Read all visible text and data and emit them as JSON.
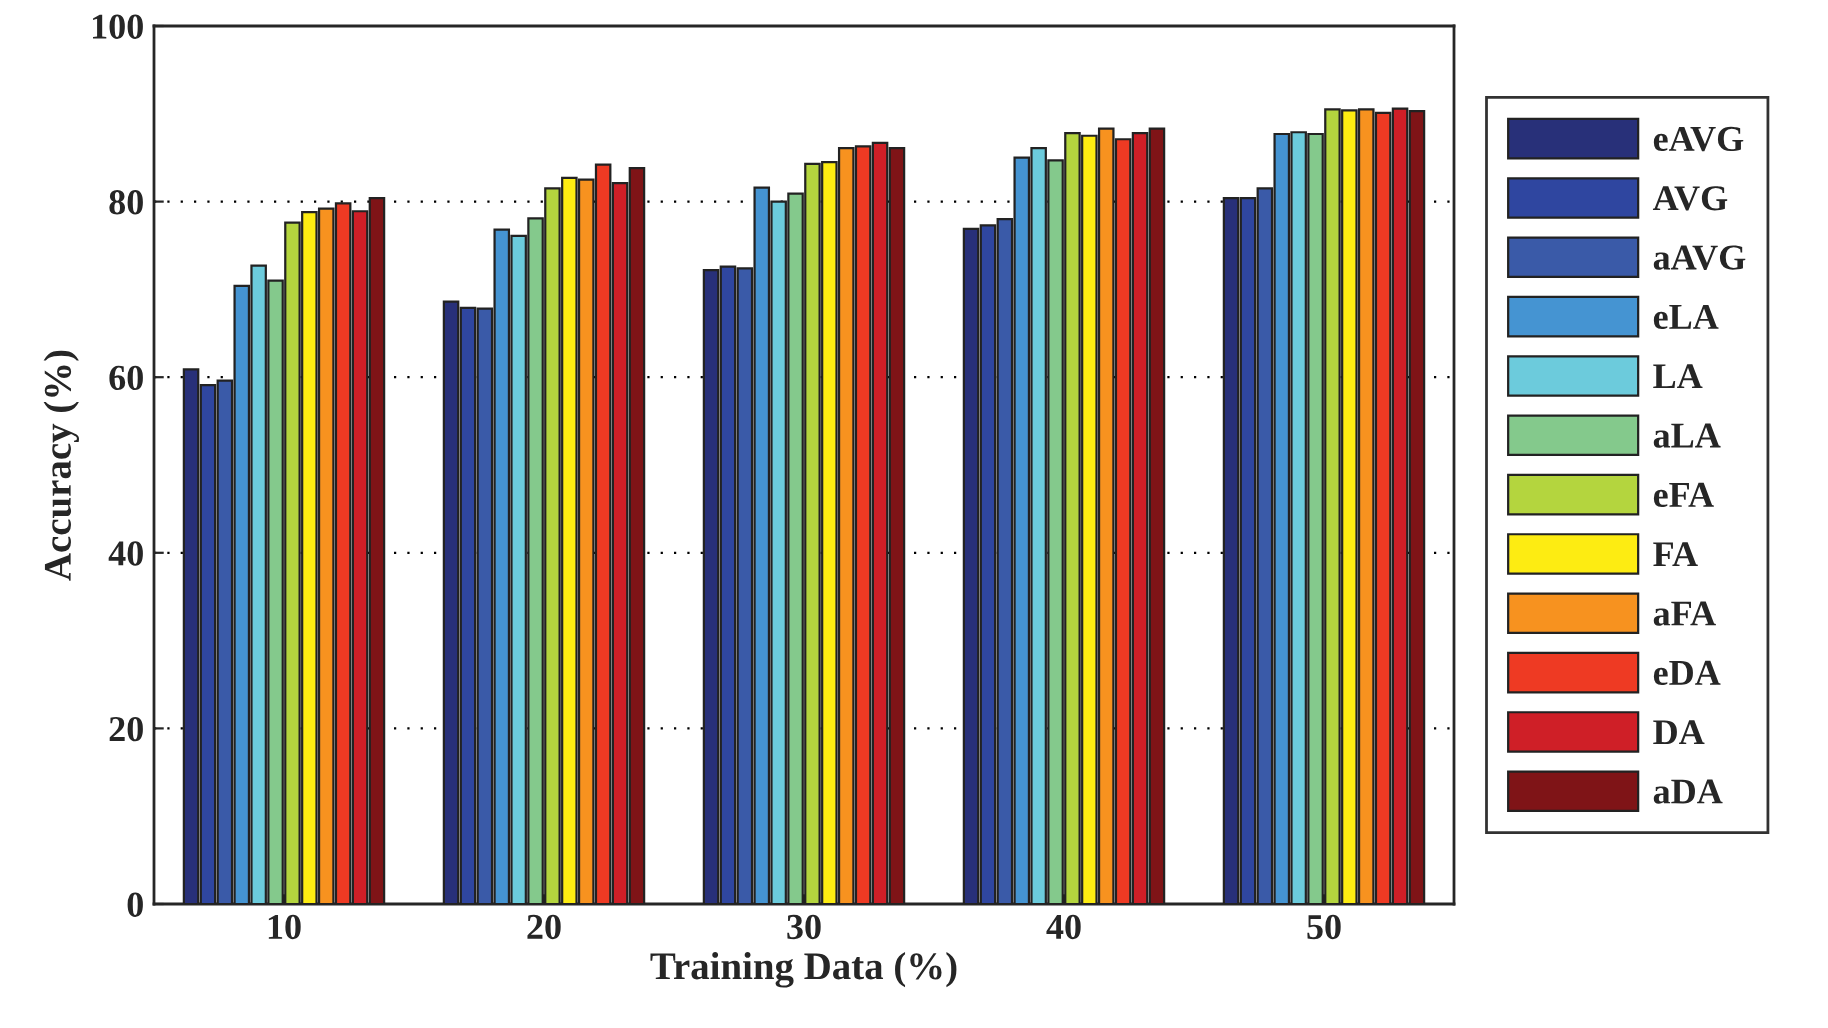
{
  "chart_data": {
    "type": "bar",
    "xlabel": "Training Data (%)",
    "ylabel": "Accuracy (%)",
    "categories": [
      "10",
      "20",
      "30",
      "40",
      "50"
    ],
    "series": [
      {
        "name": "eAVG",
        "color": "#283079",
        "values": [
          60.9,
          68.6,
          72.2,
          76.9,
          80.4
        ]
      },
      {
        "name": "AVG",
        "color": "#2f46a0",
        "values": [
          59.1,
          67.9,
          72.6,
          77.3,
          80.4
        ]
      },
      {
        "name": "aAVG",
        "color": "#3a5aa8",
        "values": [
          59.6,
          67.8,
          72.4,
          78.0,
          81.5
        ]
      },
      {
        "name": "eLA",
        "color": "#4594d2",
        "values": [
          70.4,
          76.8,
          81.6,
          85.0,
          87.7
        ]
      },
      {
        "name": "LA",
        "color": "#6ccbdc",
        "values": [
          72.7,
          76.1,
          80.0,
          86.1,
          87.9
        ]
      },
      {
        "name": "aLA",
        "color": "#84c98c",
        "values": [
          71.0,
          78.1,
          80.9,
          84.7,
          87.7
        ]
      },
      {
        "name": "eFA",
        "color": "#b4d53e",
        "values": [
          77.6,
          81.5,
          84.3,
          87.8,
          90.5
        ]
      },
      {
        "name": "FA",
        "color": "#fdec12",
        "values": [
          78.8,
          82.7,
          84.5,
          87.5,
          90.4
        ]
      },
      {
        "name": "aFA",
        "color": "#f7921f",
        "values": [
          79.2,
          82.5,
          86.1,
          88.3,
          90.5
        ]
      },
      {
        "name": "eDA",
        "color": "#ee3a23",
        "values": [
          79.8,
          84.2,
          86.3,
          87.1,
          90.1
        ]
      },
      {
        "name": "DA",
        "color": "#cf1f27",
        "values": [
          78.9,
          82.1,
          86.7,
          87.8,
          90.6
        ]
      },
      {
        "name": "aDA",
        "color": "#7f1417",
        "values": [
          80.4,
          83.8,
          86.1,
          88.3,
          90.3
        ]
      }
    ],
    "ylim": [
      0,
      100
    ],
    "yticks": [
      0,
      20,
      40,
      60,
      80,
      100
    ],
    "grid": "y",
    "legend": "right"
  }
}
